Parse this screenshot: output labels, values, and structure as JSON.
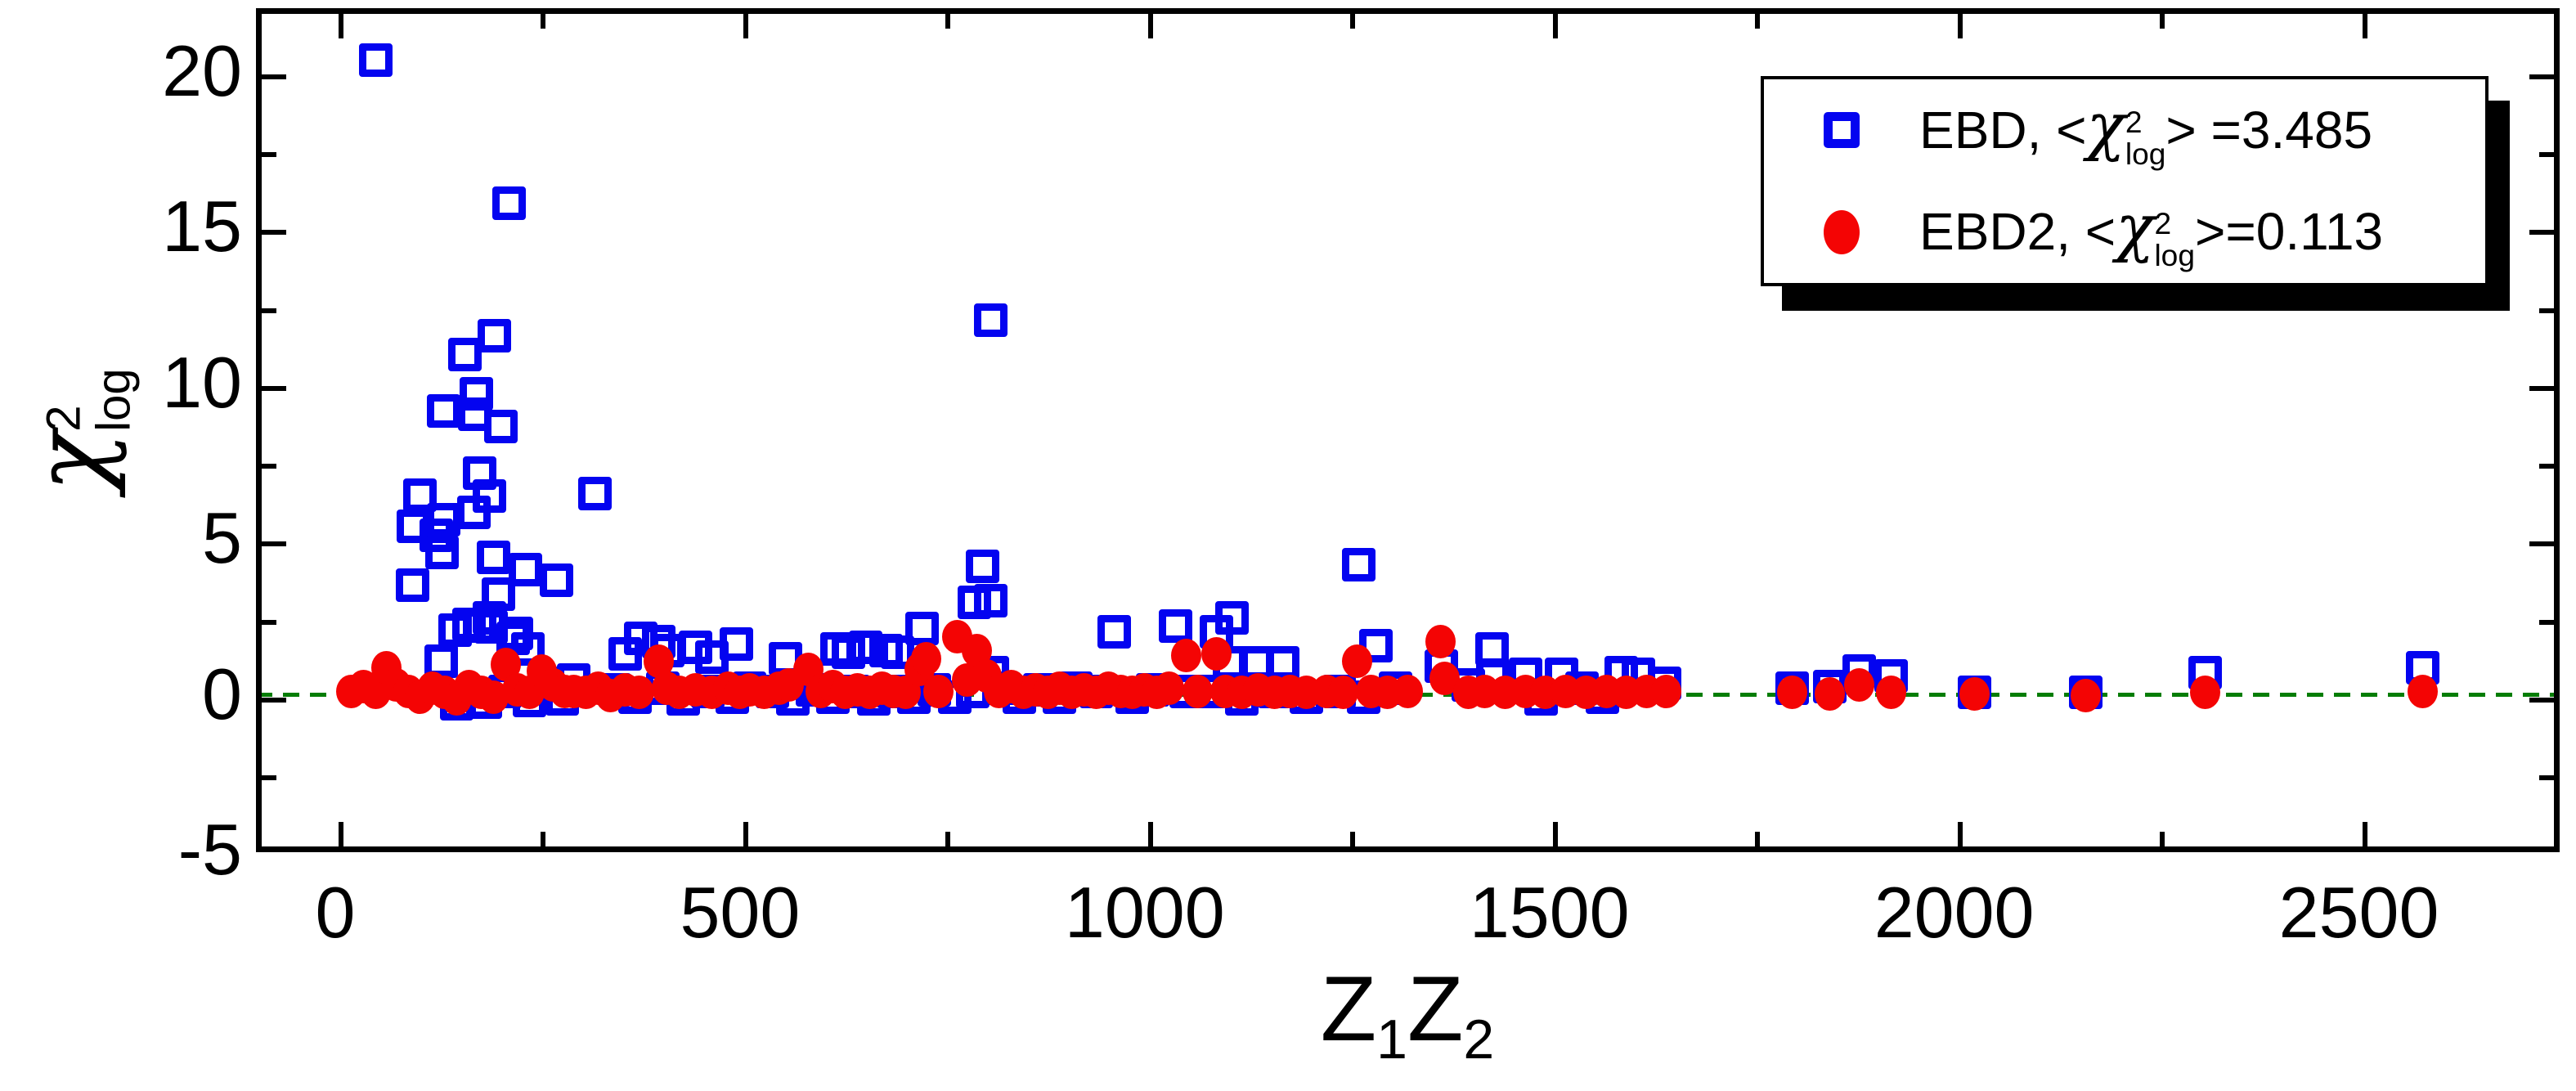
{
  "chart_data": {
    "type": "scatter",
    "title": "",
    "xlabel": "Z1Z2",
    "ylabel": "chi2_log",
    "grid": false,
    "legend_position": "top-right",
    "x_axis": {
      "range": [
        -98,
        2748
      ],
      "major_ticks": [
        0,
        500,
        1000,
        1500,
        2000,
        2500
      ],
      "major_tick_labels": [
        "0",
        "500",
        "1000",
        "1500",
        "2000",
        "2500"
      ],
      "minor_ticks": [
        250,
        750,
        1250,
        1750,
        2250,
        2750
      ]
    },
    "y_axis": {
      "range": [
        -5.07,
        22.02
      ],
      "major_ticks": [
        -5,
        0,
        5,
        10,
        15,
        20
      ],
      "major_tick_labels": [
        "-5",
        "0",
        "5",
        "10",
        "15",
        "20"
      ],
      "minor_ticks": [
        -2.5,
        2.5,
        7.5,
        12.5,
        17.5
      ]
    },
    "reference_line": {
      "y": 0,
      "style": "dashed",
      "color": "#067d06"
    },
    "series": [
      {
        "name": "EBD",
        "marker": "open-square",
        "color": "#0404f0",
        "mean_chi2_log": 3.485,
        "points": [
          [
            50,
            20.35
          ],
          [
            215,
            15.75
          ],
          [
            196,
            11.5
          ],
          [
            160,
            10.9
          ],
          [
            174,
            9.65
          ],
          [
            134,
            9.1
          ],
          [
            172,
            9.0
          ],
          [
            205,
            8.6
          ],
          [
            178,
            7.1
          ],
          [
            321,
            6.45
          ],
          [
            105,
            6.4
          ],
          [
            190,
            6.35
          ],
          [
            171,
            5.85
          ],
          [
            134,
            5.6
          ],
          [
            96,
            5.4
          ],
          [
            125,
            5.1
          ],
          [
            132,
            4.55
          ],
          [
            195,
            4.4
          ],
          [
            235,
            4.0
          ],
          [
            273,
            3.65
          ],
          [
            95,
            3.5
          ],
          [
            202,
            3.2
          ],
          [
            190,
            2.45
          ],
          [
            165,
            2.25
          ],
          [
            192,
            2.15
          ],
          [
            148,
            2.05
          ],
          [
            178,
            2.2
          ],
          [
            224,
            1.95
          ],
          [
            220,
            1.8
          ],
          [
            238,
            1.45
          ],
          [
            131,
            1.05
          ],
          [
            150,
            -0.3
          ],
          [
            185,
            -0.25
          ],
          [
            210,
            0.1
          ],
          [
            240,
            -0.2
          ],
          [
            258,
            0.35
          ],
          [
            280,
            -0.15
          ],
          [
            295,
            0.45
          ],
          [
            345,
            0.15
          ],
          [
            358,
            1.3
          ],
          [
            370,
            -0.1
          ],
          [
            377,
            1.8
          ],
          [
            400,
            1.7
          ],
          [
            405,
            0.2
          ],
          [
            411,
            1.4
          ],
          [
            430,
            -0.15
          ],
          [
            445,
            1.5
          ],
          [
            460,
            0.1
          ],
          [
            465,
            1.2
          ],
          [
            490,
            -0.1
          ],
          [
            496,
            1.6
          ],
          [
            512,
            0.2
          ],
          [
            540,
            0.1
          ],
          [
            556,
            1.15
          ],
          [
            565,
            -0.15
          ],
          [
            590,
            0.15
          ],
          [
            615,
            -0.1
          ],
          [
            620,
            1.45
          ],
          [
            634,
            1.35
          ],
          [
            640,
            0.1
          ],
          [
            655,
            1.5
          ],
          [
            665,
            -0.15
          ],
          [
            680,
            1.4
          ],
          [
            690,
            0.1
          ],
          [
            695,
            1.35
          ],
          [
            715,
            -0.1
          ],
          [
            725,
            2.1
          ],
          [
            740,
            0.15
          ],
          [
            765,
            -0.1
          ],
          [
            788,
            0.1
          ],
          [
            790,
            2.95
          ],
          [
            812,
            0.7
          ],
          [
            810,
            12.0
          ],
          [
            800,
            4.1
          ],
          [
            810,
            3.0
          ],
          [
            825,
            0.2
          ],
          [
            845,
            -0.1
          ],
          [
            870,
            0.15
          ],
          [
            895,
            -0.1
          ],
          [
            915,
            0.2
          ],
          [
            940,
            0.1
          ],
          [
            962,
            2.0
          ],
          [
            985,
            -0.1
          ],
          [
            1010,
            0.15
          ],
          [
            1038,
            2.2
          ],
          [
            1051,
            0.1
          ],
          [
            1080,
            0.1
          ],
          [
            1089,
            2.0
          ],
          [
            1105,
            1.0
          ],
          [
            1108,
            2.45
          ],
          [
            1120,
            -0.15
          ],
          [
            1139,
            1.0
          ],
          [
            1160,
            0.1
          ],
          [
            1170,
            1.0
          ],
          [
            1200,
            -0.1
          ],
          [
            1240,
            0.1
          ],
          [
            1264,
            4.15
          ],
          [
            1270,
            -0.1
          ],
          [
            1286,
            1.55
          ],
          [
            1310,
            0.2
          ],
          [
            1366,
            0.9
          ],
          [
            1400,
            0.3
          ],
          [
            1429,
            1.45
          ],
          [
            1430,
            0.55
          ],
          [
            1470,
            0.65
          ],
          [
            1490,
            -0.15
          ],
          [
            1515,
            0.65
          ],
          [
            1540,
            0.2
          ],
          [
            1565,
            -0.1
          ],
          [
            1589,
            0.7
          ],
          [
            1610,
            0.65
          ],
          [
            1642,
            0.35
          ],
          [
            1800,
            0.2
          ],
          [
            1846,
            0.25
          ],
          [
            1883,
            0.75
          ],
          [
            1922,
            0.6
          ],
          [
            2025,
            0.05
          ],
          [
            2163,
            0.05
          ],
          [
            2310,
            0.7
          ],
          [
            2579,
            0.85
          ]
        ]
      },
      {
        "name": "EBD2",
        "marker": "filled-circle",
        "color": "#f40404",
        "mean_chi2_log": 0.113,
        "points": [
          [
            20,
            0.1
          ],
          [
            35,
            0.25
          ],
          [
            50,
            0.05
          ],
          [
            63,
            0.85
          ],
          [
            75,
            0.3
          ],
          [
            90,
            0.1
          ],
          [
            105,
            -0.1
          ],
          [
            120,
            0.2
          ],
          [
            135,
            0.05
          ],
          [
            150,
            -0.15
          ],
          [
            165,
            0.25
          ],
          [
            180,
            0.05
          ],
          [
            195,
            -0.1
          ],
          [
            211,
            0.95
          ],
          [
            225,
            0.15
          ],
          [
            240,
            0.05
          ],
          [
            255,
            0.75
          ],
          [
            269,
            0.3
          ],
          [
            283,
            0.1
          ],
          [
            295,
            0.1
          ],
          [
            310,
            0.05
          ],
          [
            325,
            0.2
          ],
          [
            340,
            -0.05
          ],
          [
            358,
            0.15
          ],
          [
            375,
            0.05
          ],
          [
            400,
            1.05
          ],
          [
            410,
            0.2
          ],
          [
            425,
            0.05
          ],
          [
            445,
            0.15
          ],
          [
            465,
            0.05
          ],
          [
            485,
            0.2
          ],
          [
            500,
            0.05
          ],
          [
            512,
            0.15
          ],
          [
            530,
            0.05
          ],
          [
            548,
            0.2
          ],
          [
            560,
            0.3
          ],
          [
            584,
            0.8
          ],
          [
            600,
            0.1
          ],
          [
            615,
            0.25
          ],
          [
            630,
            0.05
          ],
          [
            645,
            0.15
          ],
          [
            660,
            0.05
          ],
          [
            675,
            0.2
          ],
          [
            690,
            0.1
          ],
          [
            705,
            0.05
          ],
          [
            722,
            0.8
          ],
          [
            730,
            1.15
          ],
          [
            745,
            0.1
          ],
          [
            768,
            1.85
          ],
          [
            780,
            0.45
          ],
          [
            793,
            1.4
          ],
          [
            805,
            0.6
          ],
          [
            820,
            0.1
          ],
          [
            835,
            0.25
          ],
          [
            850,
            0.05
          ],
          [
            865,
            0.15
          ],
          [
            880,
            0.05
          ],
          [
            895,
            0.2
          ],
          [
            910,
            0.05
          ],
          [
            925,
            0.15
          ],
          [
            940,
            0.05
          ],
          [
            955,
            0.2
          ],
          [
            970,
            0.1
          ],
          [
            985,
            0.05
          ],
          [
            1000,
            0.15
          ],
          [
            1015,
            0.05
          ],
          [
            1030,
            0.2
          ],
          [
            1051,
            1.25
          ],
          [
            1065,
            0.1
          ],
          [
            1089,
            1.3
          ],
          [
            1100,
            0.1
          ],
          [
            1120,
            0.05
          ],
          [
            1140,
            0.15
          ],
          [
            1160,
            0.05
          ],
          [
            1180,
            0.1
          ],
          [
            1200,
            0.05
          ],
          [
            1225,
            0.1
          ],
          [
            1245,
            0.05
          ],
          [
            1262,
            1.05
          ],
          [
            1280,
            0.1
          ],
          [
            1300,
            0.05
          ],
          [
            1325,
            0.1
          ],
          [
            1365,
            1.7
          ],
          [
            1370,
            0.5
          ],
          [
            1400,
            0.05
          ],
          [
            1420,
            0.1
          ],
          [
            1445,
            0.05
          ],
          [
            1470,
            0.1
          ],
          [
            1495,
            0.05
          ],
          [
            1520,
            0.1
          ],
          [
            1545,
            0.05
          ],
          [
            1570,
            0.1
          ],
          [
            1595,
            0.05
          ],
          [
            1620,
            0.1
          ],
          [
            1644,
            0.1
          ],
          [
            1800,
            0.05
          ],
          [
            1846,
            0.0
          ],
          [
            1883,
            0.3
          ],
          [
            1922,
            0.05
          ],
          [
            2025,
            0.0
          ],
          [
            2163,
            -0.05
          ],
          [
            2310,
            0.05
          ],
          [
            2579,
            0.1
          ]
        ]
      }
    ]
  },
  "titles": {
    "x_title": {
      "z1": "Z",
      "sub1": "1",
      "z2": "Z",
      "sub2": "2"
    },
    "y_title": {
      "chi": "χ",
      "sup": "2",
      "sub": "log"
    }
  },
  "legend": {
    "rows": [
      {
        "marker": "open-square",
        "pre": "EBD,  <",
        "chi": "χ",
        "sup": "2",
        "sub": "log",
        "post": "> =3.485"
      },
      {
        "marker": "filled-circle",
        "pre": "EBD2, <",
        "chi": "χ",
        "sup": "2",
        "sub": "log",
        "post": ">=0.113"
      }
    ]
  },
  "colors": {
    "blue": "#0404f0",
    "red": "#f40404",
    "green": "#067d06",
    "frame": "#000000",
    "background": "#ffffff"
  }
}
